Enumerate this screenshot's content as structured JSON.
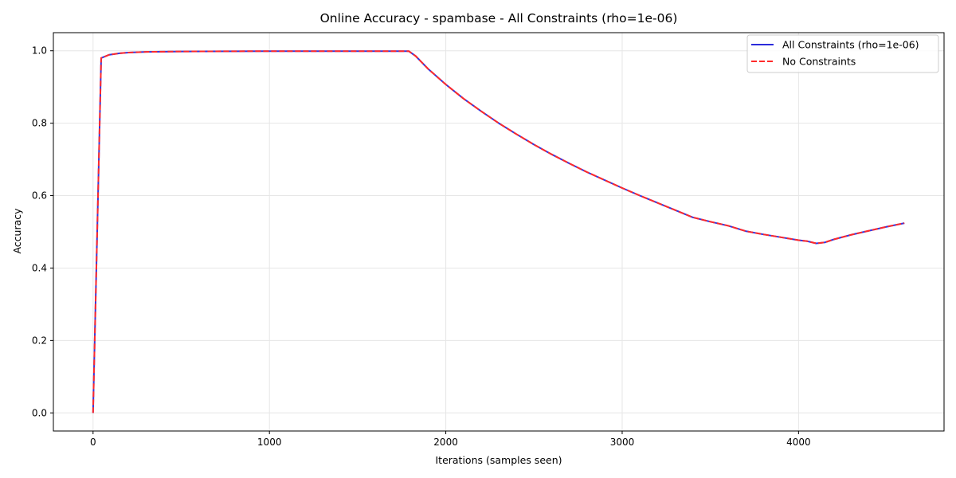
{
  "chart_data": {
    "type": "line",
    "title": "Online Accuracy - spambase - All Constraints (rho=1e-06)",
    "xlabel": "Iterations (samples seen)",
    "ylabel": "Accuracy",
    "xlim": [
      -225,
      4825
    ],
    "ylim": [
      -0.05,
      1.05
    ],
    "xticks": [
      0,
      1000,
      2000,
      3000,
      4000
    ],
    "yticks": [
      0.0,
      0.2,
      0.4,
      0.6,
      0.8,
      1.0
    ],
    "xtick_labels": [
      "0",
      "1000",
      "2000",
      "3000",
      "4000"
    ],
    "ytick_labels": [
      "0.0",
      "0.2",
      "0.4",
      "0.6",
      "0.8",
      "1.0"
    ],
    "grid": true,
    "legend_position": "top-right",
    "series": [
      {
        "name": "All Constraints (rho=1e-06)",
        "color": "#2b2bdb",
        "style": "solid",
        "x": [
          0,
          46,
          92,
          150,
          200,
          300,
          500,
          1000,
          1500,
          1790,
          1830,
          1900,
          2000,
          2100,
          2200,
          2300,
          2400,
          2500,
          2600,
          2700,
          2800,
          2900,
          3000,
          3100,
          3200,
          3300,
          3400,
          3500,
          3600,
          3700,
          3800,
          3900,
          4000,
          4050,
          4100,
          4150,
          4200,
          4300,
          4400,
          4500,
          4600
        ],
        "y": [
          0.0,
          0.98,
          0.989,
          0.993,
          0.995,
          0.997,
          0.998,
          0.999,
          0.999,
          0.999,
          0.985,
          0.95,
          0.907,
          0.868,
          0.833,
          0.8,
          0.77,
          0.741,
          0.714,
          0.689,
          0.665,
          0.643,
          0.621,
          0.6,
          0.58,
          0.56,
          0.54,
          0.528,
          0.517,
          0.502,
          0.493,
          0.485,
          0.477,
          0.474,
          0.468,
          0.471,
          0.479,
          0.492,
          0.503,
          0.514,
          0.524
        ]
      },
      {
        "name": "No Constraints",
        "color": "#ff2a2a",
        "style": "dashed",
        "x": [
          0,
          46,
          92,
          150,
          200,
          300,
          500,
          1000,
          1500,
          1790,
          1830,
          1900,
          2000,
          2100,
          2200,
          2300,
          2400,
          2500,
          2600,
          2700,
          2800,
          2900,
          3000,
          3100,
          3200,
          3300,
          3400,
          3500,
          3600,
          3700,
          3800,
          3900,
          4000,
          4050,
          4100,
          4150,
          4200,
          4300,
          4400,
          4500,
          4600
        ],
        "y": [
          0.0,
          0.98,
          0.989,
          0.993,
          0.995,
          0.997,
          0.998,
          0.999,
          0.999,
          0.999,
          0.985,
          0.95,
          0.907,
          0.868,
          0.833,
          0.8,
          0.77,
          0.741,
          0.714,
          0.689,
          0.665,
          0.643,
          0.621,
          0.6,
          0.58,
          0.56,
          0.54,
          0.528,
          0.517,
          0.502,
          0.493,
          0.485,
          0.477,
          0.474,
          0.468,
          0.471,
          0.479,
          0.492,
          0.503,
          0.514,
          0.524
        ]
      }
    ]
  }
}
